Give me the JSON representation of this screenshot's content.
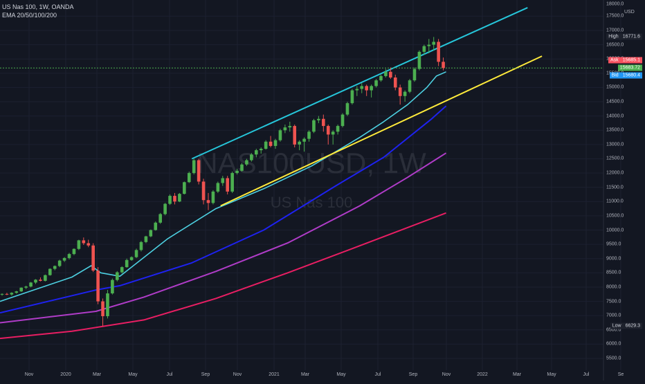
{
  "header": {
    "symbol_line": "US Nas 100, 1W, OANDA",
    "indicator_line": "EMA 20/50/100/200"
  },
  "watermark": {
    "symbol": "NAS100USD, 1W",
    "name": "US Nas 100"
  },
  "price_axis": {
    "unit": "USD",
    "top_label": "18000.0",
    "labels": [
      "17500.0",
      "17000.0",
      "16500.0",
      "16000.0",
      "15500.0",
      "15000.0",
      "14500.0",
      "14000.0",
      "13500.0",
      "13000.0",
      "12500.0",
      "12000.0",
      "11500.0",
      "11000.0",
      "10500.0",
      "10000.0",
      "9500.0",
      "9000.0",
      "8500.0",
      "8000.0",
      "7500.0",
      "7000.0",
      "6500.0",
      "6000.0",
      "5500.0"
    ]
  },
  "time_axis": {
    "labels": [
      "Nov",
      "2020",
      "Mar",
      "May",
      "Jul",
      "Sep",
      "Nov",
      "2021",
      "Mar",
      "May",
      "Jul",
      "Sep",
      "Nov",
      "2022",
      "Mar",
      "May",
      "Jul",
      "Se"
    ]
  },
  "price_tags": {
    "high": {
      "label": "High",
      "value": "16771.6",
      "color": "#1e222d"
    },
    "ask": {
      "label": "Ask",
      "value": "15685.1",
      "color": "#f7525f"
    },
    "last": {
      "label": "",
      "value": "15683.72",
      "color": "#4caf50"
    },
    "bid": {
      "label": "Bid",
      "value": "15680.4",
      "color": "#2196f3"
    },
    "low": {
      "label": "Low",
      "value": "6629.3",
      "color": "#1e222d"
    }
  },
  "colors": {
    "background": "#131722",
    "up_candle": "#26a69a",
    "up_candle_body": "#4caf50",
    "down_candle": "#ef5350",
    "ema20": "#4dd0e1",
    "ema50": "#1e22f0",
    "ema100": "#b03cc8",
    "ema200": "#e91e63",
    "channel_upper": "#26c6da",
    "trend_lower": "#ffeb3b",
    "last_price_line": "#4caf50"
  },
  "chart_data": {
    "type": "candlestick",
    "timeframe": "1W",
    "y_range": [
      5300,
      18150
    ],
    "x_range_weeks": [
      0,
      95
    ],
    "candles": [
      [
        7740,
        7780,
        7700,
        7760
      ],
      [
        7760,
        7800,
        7720,
        7740
      ],
      [
        7740,
        7820,
        7700,
        7800
      ],
      [
        7800,
        7870,
        7770,
        7850
      ],
      [
        7850,
        7990,
        7830,
        7980
      ],
      [
        7980,
        8050,
        7930,
        8020
      ],
      [
        8020,
        8180,
        7990,
        8160
      ],
      [
        8160,
        8280,
        8110,
        8260
      ],
      [
        8260,
        8340,
        8200,
        8220
      ],
      [
        8220,
        8440,
        8200,
        8420
      ],
      [
        8420,
        8660,
        8400,
        8640
      ],
      [
        8640,
        8760,
        8590,
        8740
      ],
      [
        8740,
        8960,
        8700,
        8930
      ],
      [
        8930,
        9050,
        8880,
        9020
      ],
      [
        9020,
        9200,
        8970,
        9160
      ],
      [
        9160,
        9360,
        9120,
        9340
      ],
      [
        9340,
        9660,
        9300,
        9640
      ],
      [
        9640,
        9740,
        9480,
        9540
      ],
      [
        9540,
        9660,
        9400,
        9460
      ],
      [
        9460,
        9540,
        8530,
        8580
      ],
      [
        8580,
        8700,
        7400,
        7500
      ],
      [
        7500,
        7600,
        6629,
        6980
      ],
      [
        6980,
        7900,
        6900,
        7780
      ],
      [
        7780,
        8300,
        7740,
        8250
      ],
      [
        8250,
        8560,
        8200,
        8520
      ],
      [
        8520,
        8730,
        8480,
        8700
      ],
      [
        8700,
        9000,
        8680,
        8950
      ],
      [
        8950,
        9080,
        8920,
        9050
      ],
      [
        9050,
        9350,
        9020,
        9300
      ],
      [
        9300,
        9620,
        9250,
        9580
      ],
      [
        9580,
        9800,
        9540,
        9780
      ],
      [
        9780,
        10020,
        9750,
        10000
      ],
      [
        10000,
        10300,
        9980,
        10260
      ],
      [
        10260,
        10600,
        10220,
        10560
      ],
      [
        10560,
        10950,
        10520,
        10920
      ],
      [
        10920,
        11250,
        10880,
        11200
      ],
      [
        11200,
        11300,
        10900,
        11000
      ],
      [
        11000,
        11300,
        10980,
        11270
      ],
      [
        11270,
        11700,
        11250,
        11680
      ],
      [
        11680,
        12050,
        11650,
        12000
      ],
      [
        12000,
        12500,
        11950,
        12450
      ],
      [
        12450,
        12500,
        11600,
        11700
      ],
      [
        11700,
        11800,
        10900,
        11050
      ],
      [
        11050,
        11300,
        10700,
        10950
      ],
      [
        10950,
        11400,
        10900,
        11350
      ],
      [
        11350,
        11700,
        11300,
        11650
      ],
      [
        11650,
        11900,
        11550,
        11820
      ],
      [
        11820,
        11900,
        11250,
        11350
      ],
      [
        11350,
        12050,
        11300,
        12000
      ],
      [
        12000,
        12150,
        11950,
        12080
      ],
      [
        12080,
        12350,
        12050,
        12300
      ],
      [
        12300,
        12500,
        12250,
        12450
      ],
      [
        12450,
        12700,
        12400,
        12650
      ],
      [
        12650,
        12850,
        12550,
        12800
      ],
      [
        12800,
        12900,
        12680,
        12850
      ],
      [
        12850,
        13150,
        12820,
        13100
      ],
      [
        13100,
        13300,
        12900,
        12950
      ],
      [
        12950,
        13200,
        12850,
        13150
      ],
      [
        13150,
        13550,
        13100,
        13500
      ],
      [
        13500,
        13700,
        13400,
        13600
      ],
      [
        13600,
        13800,
        13450,
        13650
      ],
      [
        13650,
        13700,
        12900,
        13000
      ],
      [
        13000,
        13150,
        12800,
        13100
      ],
      [
        13100,
        13250,
        12750,
        13200
      ],
      [
        13200,
        13500,
        13100,
        13450
      ],
      [
        13450,
        13900,
        13400,
        13850
      ],
      [
        13850,
        14000,
        13750,
        13900
      ],
      [
        13900,
        14050,
        13450,
        13650
      ],
      [
        13650,
        13700,
        13000,
        13350
      ],
      [
        13350,
        13500,
        13000,
        13450
      ],
      [
        13450,
        13700,
        13350,
        13650
      ],
      [
        13650,
        14100,
        13600,
        14050
      ],
      [
        14050,
        14500,
        14000,
        14450
      ],
      [
        14450,
        14950,
        14400,
        14900
      ],
      [
        14900,
        15050,
        14700,
        14950
      ],
      [
        14950,
        15150,
        14800,
        15050
      ],
      [
        15050,
        15100,
        14700,
        14900
      ],
      [
        14900,
        15100,
        14650,
        15050
      ],
      [
        15050,
        15300,
        15000,
        15250
      ],
      [
        15250,
        15450,
        15200,
        15400
      ],
      [
        15400,
        15650,
        15350,
        15550
      ],
      [
        15550,
        15700,
        15300,
        15350
      ],
      [
        15350,
        15450,
        14900,
        15000
      ],
      [
        15000,
        15100,
        14400,
        14700
      ],
      [
        14700,
        14900,
        14500,
        14850
      ],
      [
        14850,
        15300,
        14800,
        15250
      ],
      [
        15250,
        15700,
        15200,
        15650
      ],
      [
        15650,
        16300,
        15600,
        16250
      ],
      [
        16250,
        16500,
        16150,
        16450
      ],
      [
        16450,
        16700,
        16200,
        16500
      ],
      [
        16500,
        16771.6,
        16300,
        16600
      ],
      [
        16600,
        16700,
        15750,
        15900
      ],
      [
        15900,
        16050,
        15600,
        15683.72
      ]
    ],
    "ema20": [
      [
        0,
        7500
      ],
      [
        15,
        8350
      ],
      [
        19,
        8750
      ],
      [
        21,
        8500
      ],
      [
        25,
        8380
      ],
      [
        35,
        9700
      ],
      [
        45,
        10750
      ],
      [
        55,
        11450
      ],
      [
        65,
        12250
      ],
      [
        75,
        13250
      ],
      [
        80,
        13800
      ],
      [
        85,
        14400
      ],
      [
        89,
        15000
      ],
      [
        91,
        15400
      ],
      [
        93,
        15550
      ]
    ],
    "ema50": [
      [
        0,
        7100
      ],
      [
        20,
        7900
      ],
      [
        25,
        8050
      ],
      [
        40,
        8850
      ],
      [
        55,
        10000
      ],
      [
        70,
        11550
      ],
      [
        80,
        12550
      ],
      [
        90,
        13900
      ],
      [
        93,
        14350
      ]
    ],
    "ema100": [
      [
        0,
        6750
      ],
      [
        20,
        7150
      ],
      [
        30,
        7650
      ],
      [
        45,
        8550
      ],
      [
        60,
        9550
      ],
      [
        75,
        10850
      ],
      [
        85,
        11850
      ],
      [
        93,
        12700
      ]
    ],
    "ema200": [
      [
        0,
        6200
      ],
      [
        15,
        6450
      ],
      [
        30,
        6850
      ],
      [
        45,
        7600
      ],
      [
        60,
        8500
      ],
      [
        75,
        9450
      ],
      [
        93,
        10600
      ]
    ],
    "channel_upper": [
      [
        40,
        12500
      ],
      [
        110,
        17800
      ]
    ],
    "trend_lower": [
      [
        46,
        10850
      ],
      [
        113,
        16100
      ]
    ],
    "last_price": 15683.72
  }
}
